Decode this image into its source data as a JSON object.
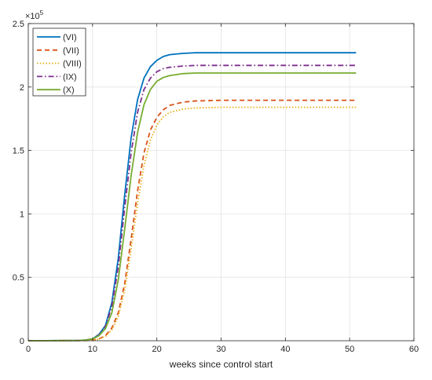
{
  "chart_data": {
    "type": "line",
    "xlabel": "weeks since control start",
    "ylabel": "",
    "xlim": [
      0,
      60
    ],
    "ylim": [
      0,
      250000
    ],
    "x_ticks": [
      0,
      10,
      20,
      30,
      40,
      50,
      60
    ],
    "y_ticks": [
      0,
      50000,
      100000,
      150000,
      200000,
      250000
    ],
    "y_tick_labels": [
      "0",
      "0.5",
      "1",
      "1.5",
      "2",
      "2.5"
    ],
    "y_exponent_base": "×10",
    "y_exponent_power": "5",
    "grid": true,
    "legend_position": "top-left",
    "series": [
      {
        "name": "(VI)",
        "color": "#0072BD",
        "style": "solid",
        "points": [
          [
            0,
            0
          ],
          [
            8,
            200
          ],
          [
            9,
            600
          ],
          [
            10,
            1500
          ],
          [
            11,
            5000
          ],
          [
            12,
            12000
          ],
          [
            13,
            30000
          ],
          [
            14,
            65000
          ],
          [
            15,
            115000
          ],
          [
            16,
            160000
          ],
          [
            17,
            190000
          ],
          [
            18,
            207000
          ],
          [
            19,
            216000
          ],
          [
            20,
            221000
          ],
          [
            21,
            224000
          ],
          [
            22,
            225500
          ],
          [
            24,
            226500
          ],
          [
            26,
            227000
          ],
          [
            30,
            227000
          ],
          [
            40,
            227000
          ],
          [
            51,
            227000
          ]
        ]
      },
      {
        "name": "(VII)",
        "color": "#D95319",
        "style": "dashed",
        "points": [
          [
            0,
            0
          ],
          [
            9,
            200
          ],
          [
            10,
            600
          ],
          [
            11,
            1500
          ],
          [
            12,
            4000
          ],
          [
            13,
            10000
          ],
          [
            14,
            22000
          ],
          [
            15,
            45000
          ],
          [
            16,
            80000
          ],
          [
            17,
            118000
          ],
          [
            18,
            148000
          ],
          [
            19,
            166000
          ],
          [
            20,
            176000
          ],
          [
            21,
            182000
          ],
          [
            22,
            185500
          ],
          [
            24,
            188000
          ],
          [
            26,
            189000
          ],
          [
            30,
            189500
          ],
          [
            40,
            189500
          ],
          [
            51,
            189500
          ]
        ]
      },
      {
        "name": "(VIII)",
        "color": "#EDB120",
        "style": "dotted",
        "points": [
          [
            0,
            0
          ],
          [
            9,
            200
          ],
          [
            10,
            600
          ],
          [
            11,
            1300
          ],
          [
            12,
            3500
          ],
          [
            13,
            8500
          ],
          [
            14,
            19000
          ],
          [
            15,
            40000
          ],
          [
            16,
            72000
          ],
          [
            17,
            108000
          ],
          [
            18,
            138000
          ],
          [
            19,
            158000
          ],
          [
            20,
            170000
          ],
          [
            21,
            176500
          ],
          [
            22,
            180000
          ],
          [
            24,
            182500
          ],
          [
            26,
            183500
          ],
          [
            30,
            184000
          ],
          [
            40,
            184000
          ],
          [
            51,
            184000
          ]
        ]
      },
      {
        "name": "(IX)",
        "color": "#7E2F8E",
        "style": "dashdot",
        "points": [
          [
            0,
            0
          ],
          [
            8,
            200
          ],
          [
            9,
            600
          ],
          [
            10,
            1500
          ],
          [
            11,
            4500
          ],
          [
            12,
            11000
          ],
          [
            13,
            27000
          ],
          [
            14,
            58000
          ],
          [
            15,
            105000
          ],
          [
            16,
            148000
          ],
          [
            17,
            180000
          ],
          [
            18,
            198000
          ],
          [
            19,
            207000
          ],
          [
            20,
            212000
          ],
          [
            21,
            214500
          ],
          [
            22,
            215500
          ],
          [
            24,
            216500
          ],
          [
            26,
            217000
          ],
          [
            30,
            217000
          ],
          [
            40,
            217000
          ],
          [
            51,
            217000
          ]
        ]
      },
      {
        "name": "(X)",
        "color": "#77AC30",
        "style": "solid",
        "points": [
          [
            0,
            0
          ],
          [
            8,
            200
          ],
          [
            9,
            600
          ],
          [
            10,
            1500
          ],
          [
            11,
            4000
          ],
          [
            12,
            9500
          ],
          [
            13,
            22000
          ],
          [
            14,
            48000
          ],
          [
            15,
            88000
          ],
          [
            16,
            130000
          ],
          [
            17,
            164000
          ],
          [
            18,
            186000
          ],
          [
            19,
            198000
          ],
          [
            20,
            204500
          ],
          [
            21,
            207500
          ],
          [
            22,
            209000
          ],
          [
            24,
            210500
          ],
          [
            26,
            211000
          ],
          [
            30,
            211000
          ],
          [
            40,
            211000
          ],
          [
            51,
            211000
          ]
        ]
      }
    ]
  }
}
